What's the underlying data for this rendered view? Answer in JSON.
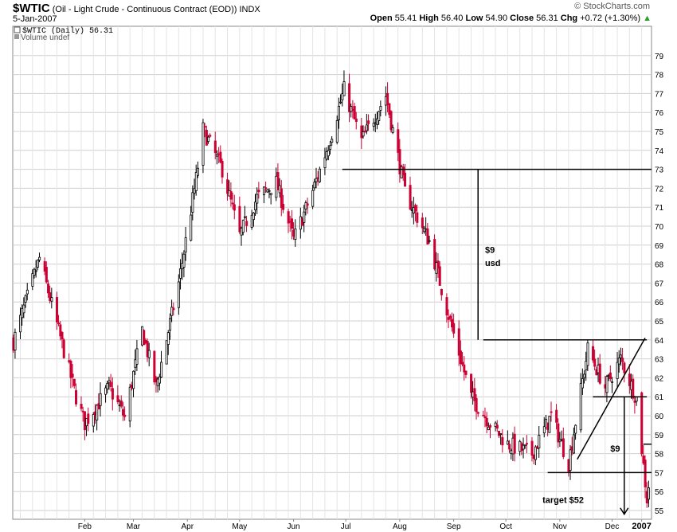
{
  "header": {
    "symbol": "$WTIC",
    "description": "(Oil - Light Crude - Continuous Contract (EOD))",
    "exchange": "INDX",
    "date": "5-Jan-2007",
    "copyright": "© StockCharts.com",
    "open_label": "Open",
    "open_value": "55.41",
    "high_label": "High",
    "high_value": "56.40",
    "low_label": "Low",
    "low_value": "54.90",
    "close_label": "Close",
    "close_value": "56.31",
    "chg_label": "Chg",
    "chg_value": "+0.72 (+1.30%)",
    "chg_arrow": "▲"
  },
  "legend": {
    "price_series": "$WTIC (Daily) 56.31",
    "volume_series": "Volume undef"
  },
  "colors": {
    "up_bar": "#000000",
    "down_bar": "#cc0033",
    "grid": "#cfcfcf",
    "annotation": "#000000"
  },
  "chart_data": {
    "type": "candlestick",
    "ylim": [
      54.6,
      80.3
    ],
    "y_ticks": [
      55,
      56,
      57,
      58,
      59,
      60,
      61,
      62,
      63,
      64,
      65,
      66,
      67,
      68,
      69,
      70,
      71,
      72,
      73,
      74,
      75,
      76,
      77,
      78,
      79
    ],
    "x_ticks": [
      "Feb",
      "Mar",
      "Apr",
      "May",
      "Jun",
      "Jul",
      "Aug",
      "Sep",
      "Oct",
      "Nov",
      "Dec",
      "2007"
    ],
    "approx_closes": [
      {
        "date": "2006-01-05",
        "close": 63.9
      },
      {
        "date": "2006-01-20",
        "close": 68.3
      },
      {
        "date": "2006-02-10",
        "close": 61.0
      },
      {
        "date": "2006-02-15",
        "close": 59.6
      },
      {
        "date": "2006-03-01",
        "close": 61.5
      },
      {
        "date": "2006-03-10",
        "close": 59.9
      },
      {
        "date": "2006-03-20",
        "close": 64.5
      },
      {
        "date": "2006-03-28",
        "close": 61.5
      },
      {
        "date": "2006-04-10",
        "close": 67.0
      },
      {
        "date": "2006-04-20",
        "close": 72.5
      },
      {
        "date": "2006-04-24",
        "close": 75.1
      },
      {
        "date": "2006-05-05",
        "close": 73.0
      },
      {
        "date": "2006-05-15",
        "close": 69.5
      },
      {
        "date": "2006-05-25",
        "close": 71.5
      },
      {
        "date": "2006-06-05",
        "close": 72.3
      },
      {
        "date": "2006-06-15",
        "close": 69.3
      },
      {
        "date": "2006-06-25",
        "close": 71.6
      },
      {
        "date": "2006-07-05",
        "close": 74.3
      },
      {
        "date": "2006-07-14",
        "close": 77.2
      },
      {
        "date": "2006-07-24",
        "close": 74.5
      },
      {
        "date": "2006-08-07",
        "close": 76.9
      },
      {
        "date": "2006-08-18",
        "close": 71.8
      },
      {
        "date": "2006-09-01",
        "close": 69.2
      },
      {
        "date": "2006-09-12",
        "close": 65.3
      },
      {
        "date": "2006-09-25",
        "close": 61.0
      },
      {
        "date": "2006-10-06",
        "close": 59.6
      },
      {
        "date": "2006-10-16",
        "close": 58.5
      },
      {
        "date": "2006-10-30",
        "close": 58.0
      },
      {
        "date": "2006-11-10",
        "close": 60.0
      },
      {
        "date": "2006-11-20",
        "close": 57.5
      },
      {
        "date": "2006-12-01",
        "close": 63.5
      },
      {
        "date": "2006-12-11",
        "close": 61.5
      },
      {
        "date": "2006-12-20",
        "close": 63.0
      },
      {
        "date": "2006-12-29",
        "close": 60.9
      },
      {
        "date": "2007-01-04",
        "close": 55.6
      },
      {
        "date": "2007-01-05",
        "close": 56.31
      }
    ],
    "annotations": [
      {
        "type": "hline",
        "y": 73,
        "from": "2006-07-13",
        "to": "2007-01-10"
      },
      {
        "type": "hline",
        "y": 64,
        "from": "2006-10-02",
        "to": "2007-01-04"
      },
      {
        "type": "hline",
        "y": 61,
        "from": "2006-12-04",
        "to": "2007-01-04"
      },
      {
        "type": "hline",
        "y": 58.5,
        "from": "2007-01-02",
        "to": "2007-01-10"
      },
      {
        "type": "hline",
        "y": 57,
        "from": "2006-11-08",
        "to": "2007-01-10"
      },
      {
        "type": "vline",
        "x": "2006-09-29",
        "from": 73,
        "to": 64
      },
      {
        "type": "vline",
        "x": "2006-12-22",
        "from": 61,
        "to": 54.8,
        "arrow": true
      },
      {
        "type": "trendline",
        "from": [
          "2006-11-25",
          57.7
        ],
        "to": [
          "2007-01-03",
          64.1
        ]
      },
      {
        "type": "text",
        "text": "$9",
        "x": "2006-10-03",
        "y": 68.6
      },
      {
        "type": "text",
        "text": "usd",
        "x": "2006-10-03",
        "y": 67.9
      },
      {
        "type": "text",
        "text": "$9",
        "x": "2006-12-14",
        "y": 58.1
      },
      {
        "type": "text",
        "text": "target $52",
        "x": "2006-11-05",
        "y": 55.4
      }
    ]
  }
}
